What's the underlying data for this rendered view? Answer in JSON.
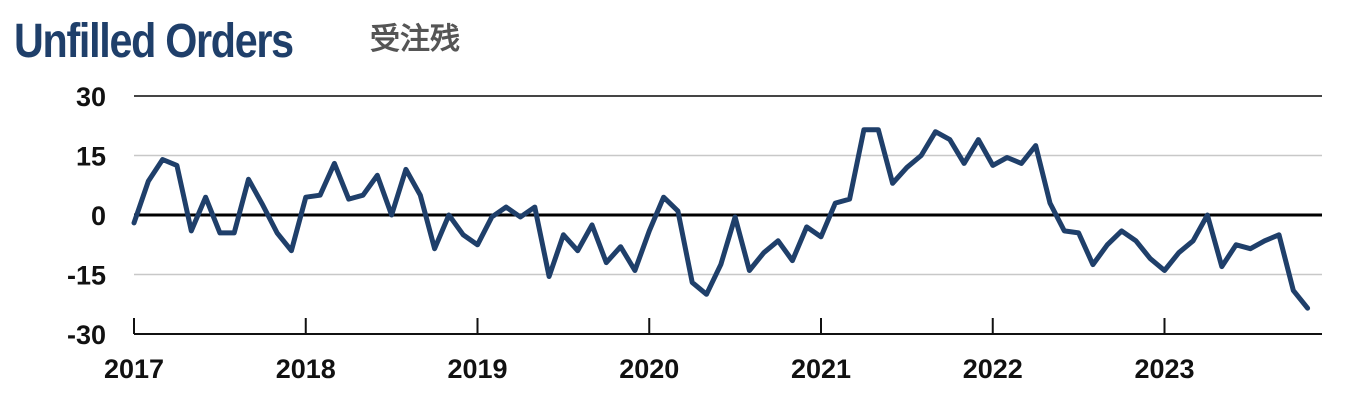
{
  "title": "Unfilled Orders",
  "subtitle": "受注残",
  "colors": {
    "line": "#1f3f6a",
    "title": "#1f3f6a",
    "subtitle": "#555555",
    "grid": "#c8c8c8",
    "zero": "#000000"
  },
  "chart_data": {
    "type": "line",
    "title": "Unfilled Orders",
    "xlabel": "",
    "ylabel": "",
    "ylim": [
      -30,
      30
    ],
    "yticks": [
      30,
      15,
      0,
      -15,
      -30
    ],
    "ytick_labels": [
      "30",
      "15",
      "0",
      "-15",
      "-30"
    ],
    "xlim": [
      2017.0,
      2023.917
    ],
    "xticks": [
      2017,
      2018,
      2019,
      2020,
      2021,
      2022,
      2023
    ],
    "xtick_labels": [
      "2017",
      "2018",
      "2019",
      "2020",
      "2021",
      "2022",
      "2023"
    ],
    "grid": "horizontal",
    "zero_line": true,
    "series": [
      {
        "name": "",
        "x": [
          "2017-01",
          "2017-02",
          "2017-03",
          "2017-04",
          "2017-05",
          "2017-06",
          "2017-07",
          "2017-08",
          "2017-09",
          "2017-10",
          "2017-11",
          "2017-12",
          "2018-01",
          "2018-02",
          "2018-03",
          "2018-04",
          "2018-05",
          "2018-06",
          "2018-07",
          "2018-08",
          "2018-09",
          "2018-10",
          "2018-11",
          "2018-12",
          "2019-01",
          "2019-02",
          "2019-03",
          "2019-04",
          "2019-05",
          "2019-06",
          "2019-07",
          "2019-08",
          "2019-09",
          "2019-10",
          "2019-11",
          "2019-12",
          "2020-01",
          "2020-02",
          "2020-03",
          "2020-04",
          "2020-05",
          "2020-06",
          "2020-07",
          "2020-08",
          "2020-09",
          "2020-10",
          "2020-11",
          "2020-12",
          "2021-01",
          "2021-02",
          "2021-03",
          "2021-04",
          "2021-05",
          "2021-06",
          "2021-07",
          "2021-08",
          "2021-09",
          "2021-10",
          "2021-11",
          "2021-12",
          "2022-01",
          "2022-02",
          "2022-03",
          "2022-04",
          "2022-05",
          "2022-06",
          "2022-07",
          "2022-08",
          "2022-09",
          "2022-10",
          "2022-11",
          "2022-12",
          "2023-01",
          "2023-02",
          "2023-03",
          "2023-04",
          "2023-05",
          "2023-06",
          "2023-07",
          "2023-08",
          "2023-09",
          "2023-10",
          "2023-11",
          "2023-12"
        ],
        "values": [
          -2,
          8.5,
          14,
          12.5,
          -4,
          4.5,
          -4.5,
          -4.5,
          9,
          2.5,
          -4.5,
          -9,
          4.5,
          5,
          13,
          4,
          5,
          10,
          0,
          11.5,
          5,
          -8.5,
          0,
          -5,
          -7.5,
          -0.5,
          2,
          -0.5,
          2,
          -15.5,
          -5,
          -9,
          -2.5,
          -12,
          -8,
          -14,
          -4,
          4.5,
          1,
          -17,
          -20,
          -12.5,
          -0.5,
          -14,
          -9.5,
          -6.5,
          -11.5,
          -3,
          -5.5,
          3,
          4,
          21.5,
          21.5,
          8,
          12,
          15,
          21,
          19,
          13,
          19,
          12.5,
          14.5,
          13,
          17.5,
          3,
          -4,
          -4.5,
          -12.5,
          -7.5,
          -4,
          -6.5,
          -11,
          -14,
          -9.5,
          -6.5,
          0,
          -13,
          -7.5,
          -8.5,
          -6.5,
          -5,
          -19,
          -23.5,
          null
        ]
      }
    ]
  }
}
